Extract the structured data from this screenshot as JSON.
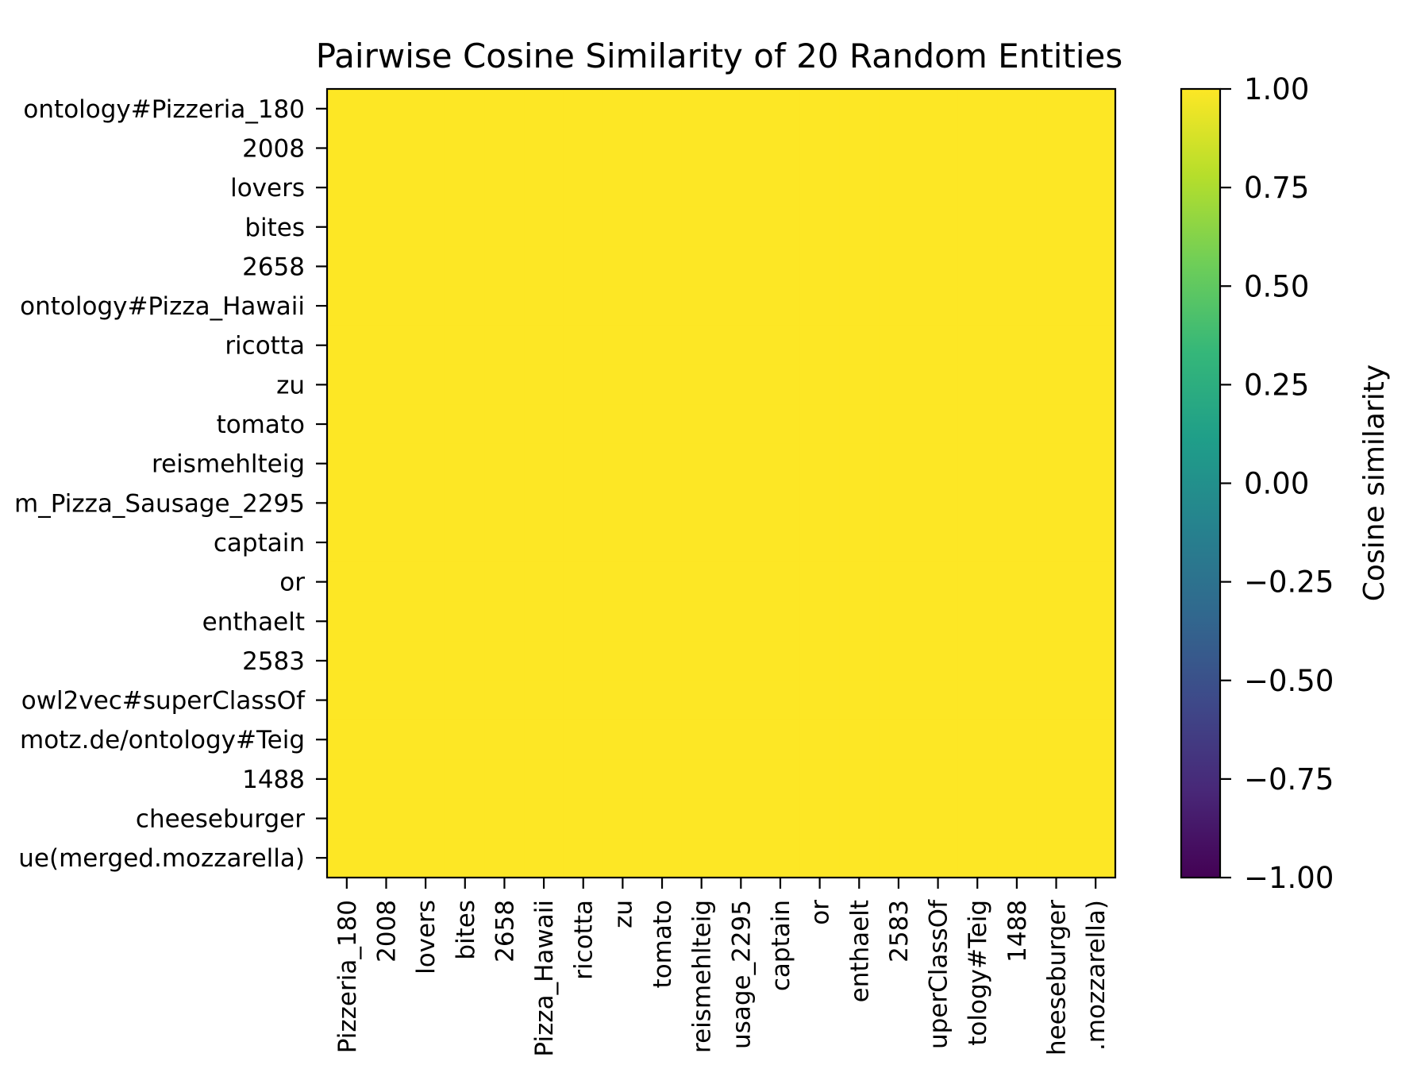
{
  "chart_data": {
    "type": "heatmap",
    "title": "Pairwise Cosine Similarity of 20 Random Entities",
    "row_labels": [
      "ontology#Pizzeria_180",
      "2008",
      "lovers",
      "bites",
      "2658",
      "ontology#Pizza_Hawaii",
      "ricotta",
      "zu",
      "tomato",
      "reismehlteig",
      "m_Pizza_Sausage_2295",
      "captain",
      "or",
      "enthaelt",
      "2583",
      "owl2vec#superClassOf",
      "motz.de/ontology#Teig",
      "1488",
      "cheeseburger",
      "ue(merged.mozzarella)"
    ],
    "column_labels": [
      "Pizzeria_180",
      "2008",
      "lovers",
      "bites",
      "2658",
      "Pizza_Hawaii",
      "ricotta",
      "zu",
      "tomato",
      "reismehlteig",
      "usage_2295",
      "captain",
      "or",
      "enthaelt",
      "2583",
      "uperClassOf",
      "tology#Teig",
      "1488",
      "heeseburger",
      ".mozzarella)"
    ],
    "value_all_cells": 1.0,
    "colorbar": {
      "label": "Cosine similarity",
      "min": -1.0,
      "max": 1.0,
      "colormap": "viridis",
      "tick_values": [
        1.0,
        0.75,
        0.5,
        0.25,
        0.0,
        -0.25,
        -0.5,
        -0.75,
        -1.0
      ],
      "tick_labels": [
        "1.00",
        "0.75",
        "0.50",
        "0.25",
        "0.00",
        "−0.25",
        "−0.50",
        "−0.75",
        "−1.00"
      ]
    },
    "colors": {
      "cell_fill": "#fde725",
      "viridis_stops": [
        "#fde725",
        "#b5de2b",
        "#6ece58",
        "#35b779",
        "#1f9e89",
        "#26828e",
        "#31688e",
        "#3e4989",
        "#482878",
        "#440154"
      ]
    }
  }
}
